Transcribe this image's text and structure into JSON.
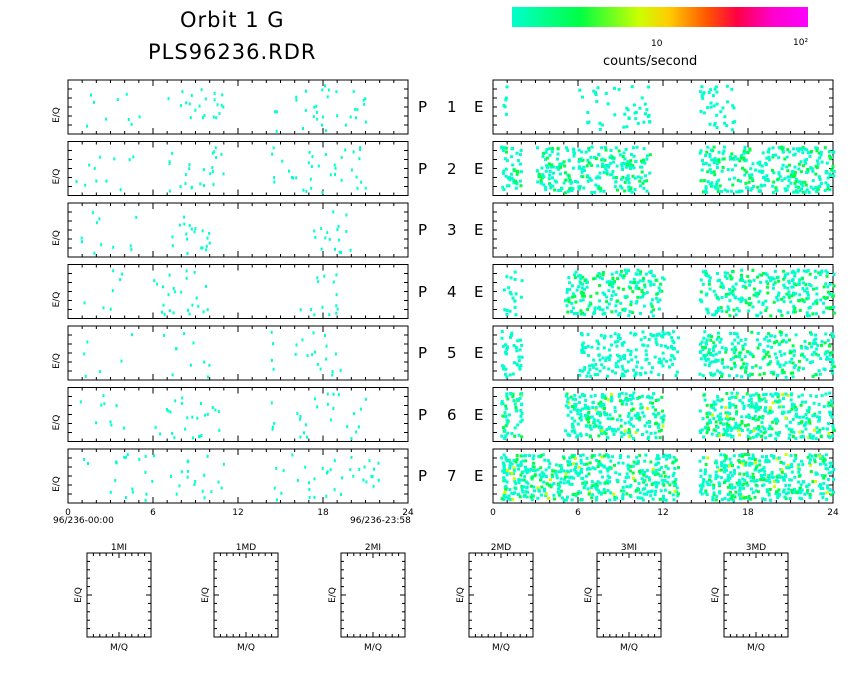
{
  "header": {
    "title_line1": "Orbit 1 G",
    "title_line2": "PLS96236.RDR"
  },
  "colorbar": {
    "ticks": [
      "10",
      "10²"
    ],
    "label": "counts/second",
    "colors": [
      "#00ffcc",
      "#00ff44",
      "#ccff00",
      "#ffcc00",
      "#ff5500",
      "#ff0044",
      "#ff00ff"
    ]
  },
  "rows": [
    {
      "p": "P",
      "n": "1",
      "e": "E"
    },
    {
      "p": "P",
      "n": "2",
      "e": "E"
    },
    {
      "p": "P",
      "n": "3",
      "e": "E"
    },
    {
      "p": "P",
      "n": "4",
      "e": "E"
    },
    {
      "p": "P",
      "n": "5",
      "e": "E"
    },
    {
      "p": "P",
      "n": "6",
      "e": "E"
    },
    {
      "p": "P",
      "n": "7",
      "e": "E"
    }
  ],
  "left_panels": {
    "ylabel": "E/Q",
    "xticks": [
      "0",
      "6",
      "12",
      "18",
      "24"
    ],
    "start_time": "96/236-00:00",
    "end_time": "96/236-23:58"
  },
  "right_panels": {
    "xticks": [
      "0",
      "6",
      "12",
      "18",
      "24"
    ]
  },
  "bottom_panels": [
    {
      "title": "1MI",
      "xlabel": "M/Q",
      "ylabel": "E/Q"
    },
    {
      "title": "1MD",
      "xlabel": "M/Q",
      "ylabel": "E/Q"
    },
    {
      "title": "2MI",
      "xlabel": "M/Q",
      "ylabel": "E/Q"
    },
    {
      "title": "2MD",
      "xlabel": "M/Q",
      "ylabel": "E/Q"
    },
    {
      "title": "3MI",
      "xlabel": "M/Q",
      "ylabel": "E/Q"
    },
    {
      "title": "3MD",
      "xlabel": "M/Q",
      "ylabel": "E/Q"
    }
  ],
  "chart_data": {
    "type": "heatmap",
    "x_unit": "hours",
    "xlim": [
      0,
      24
    ],
    "color_scale": "log counts/second",
    "left_series": [
      {
        "name": "P 1",
        "clusters": [
          [
            0.5,
            5,
            0.15
          ],
          [
            7,
            11,
            0.5
          ],
          [
            14.5,
            14.5,
            0.5
          ],
          [
            16,
            22,
            0.45
          ]
        ]
      },
      {
        "name": "P 2",
        "clusters": [
          [
            0.5,
            5,
            0.2
          ],
          [
            7,
            11,
            0.55
          ],
          [
            14.3,
            14.5,
            1
          ],
          [
            15,
            21,
            0.5
          ]
        ]
      },
      {
        "name": "P 3",
        "clusters": [
          [
            0.5,
            5,
            0.2
          ],
          [
            7,
            10,
            0.6
          ],
          [
            17,
            20,
            0.5
          ]
        ]
      },
      {
        "name": "P 4",
        "clusters": [
          [
            1,
            4,
            0.15
          ],
          [
            6,
            10,
            0.55
          ],
          [
            16,
            19,
            0.4
          ]
        ]
      },
      {
        "name": "P 5",
        "clusters": [
          [
            1,
            5,
            0.1
          ],
          [
            6,
            10,
            0.2
          ],
          [
            14.3,
            14.5,
            1
          ],
          [
            16,
            20,
            0.35
          ]
        ]
      },
      {
        "name": "P 6",
        "clusters": [
          [
            0.5,
            4,
            0.2
          ],
          [
            6,
            11,
            0.45
          ],
          [
            14.3,
            14.5,
            1
          ],
          [
            16,
            21,
            0.4
          ]
        ]
      },
      {
        "name": "P 7",
        "clusters": [
          [
            0.5,
            6,
            0.3
          ],
          [
            7,
            11,
            0.4
          ],
          [
            14.5,
            22,
            0.45
          ]
        ]
      }
    ],
    "right_series": [
      {
        "name": "P 1 E",
        "clusters": [
          [
            0.5,
            1,
            0.2
          ],
          [
            6,
            11,
            0.2
          ],
          [
            14.5,
            17,
            0.35
          ]
        ]
      },
      {
        "name": "P 2 E",
        "clusters": [
          [
            0.5,
            2,
            0.7
          ],
          [
            3,
            11,
            0.8
          ],
          [
            14.5,
            24,
            0.8
          ]
        ]
      },
      {
        "name": "P 3 E",
        "clusters": []
      },
      {
        "name": "P 4 E",
        "clusters": [
          [
            0.5,
            2,
            0.3
          ],
          [
            5,
            12,
            0.7
          ],
          [
            14.5,
            24,
            0.7
          ]
        ]
      },
      {
        "name": "P 5 E",
        "clusters": [
          [
            0.5,
            2,
            0.6
          ],
          [
            6,
            13,
            0.6
          ],
          [
            14.5,
            24,
            0.7
          ]
        ]
      },
      {
        "name": "P 6 E",
        "clusters": [
          [
            0.5,
            2,
            0.9
          ],
          [
            5,
            12,
            0.9
          ],
          [
            14.5,
            24,
            0.9
          ]
        ]
      },
      {
        "name": "P 7 E",
        "clusters": [
          [
            0.5,
            13,
            1
          ],
          [
            14.5,
            24,
            1
          ]
        ]
      }
    ]
  }
}
